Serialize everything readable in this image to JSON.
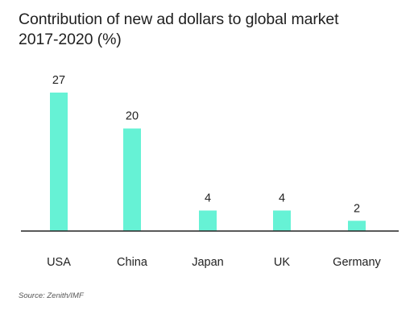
{
  "chart_data": {
    "type": "bar",
    "title": "Contribution of new ad dollars to global market",
    "subtitle": "2017-2020 (%)",
    "categories": [
      "USA",
      "China",
      "Japan",
      "UK",
      "Germany"
    ],
    "values": [
      27,
      20,
      4,
      4,
      2
    ],
    "ylim": [
      0,
      27
    ],
    "grid": false,
    "data_labels": true,
    "bar_color": "#66f2d5",
    "axis_color": "#222222"
  },
  "source": "Source: Zenith/IMF"
}
